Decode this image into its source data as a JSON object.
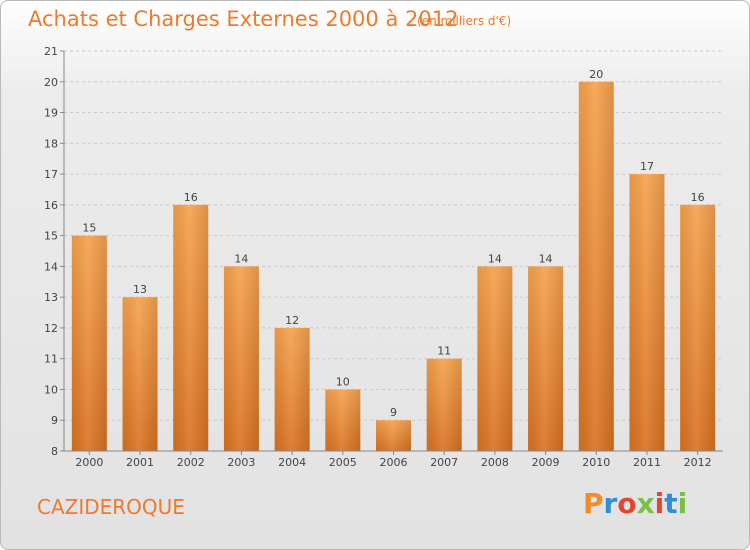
{
  "header": {
    "title": "Achats et Charges Externes 2000 à 2012",
    "unit": "(en milliers d'€)"
  },
  "footer": {
    "commune": "CAZIDEROQUE",
    "logo_letters": [
      "P",
      "r",
      "o",
      "x",
      "i",
      "t",
      "i"
    ],
    "logo_colors": [
      "#f28c28",
      "#2e8ed8",
      "#e8432e",
      "#7ac143",
      "#e8432e",
      "#2e8ed8",
      "#7ac143"
    ]
  },
  "colors": {
    "bar_top": "#f5a14c",
    "bar_bottom": "#d8711f",
    "accent": "#ee7a2b"
  },
  "chart_data": {
    "type": "bar",
    "title": "Achats et Charges Externes 2000 à 2012",
    "subtitle": "(en milliers d'€)",
    "categories": [
      "2000",
      "2001",
      "2002",
      "2003",
      "2004",
      "2005",
      "2006",
      "2007",
      "2008",
      "2009",
      "2010",
      "2011",
      "2012"
    ],
    "values": [
      15,
      13,
      16,
      14,
      12,
      10,
      9,
      11,
      14,
      14,
      20,
      17,
      16
    ],
    "data_labels": [
      "15",
      "13",
      "16",
      "14",
      "12",
      "10",
      "9",
      "11",
      "14",
      "14",
      "20",
      "17",
      "16"
    ],
    "ylim": [
      8,
      21
    ],
    "yticks": [
      "8",
      "9",
      "10",
      "11",
      "12",
      "13",
      "14",
      "15",
      "16",
      "17",
      "18",
      "19",
      "20",
      "21"
    ],
    "xlabel": "",
    "ylabel": "",
    "grid": true
  }
}
